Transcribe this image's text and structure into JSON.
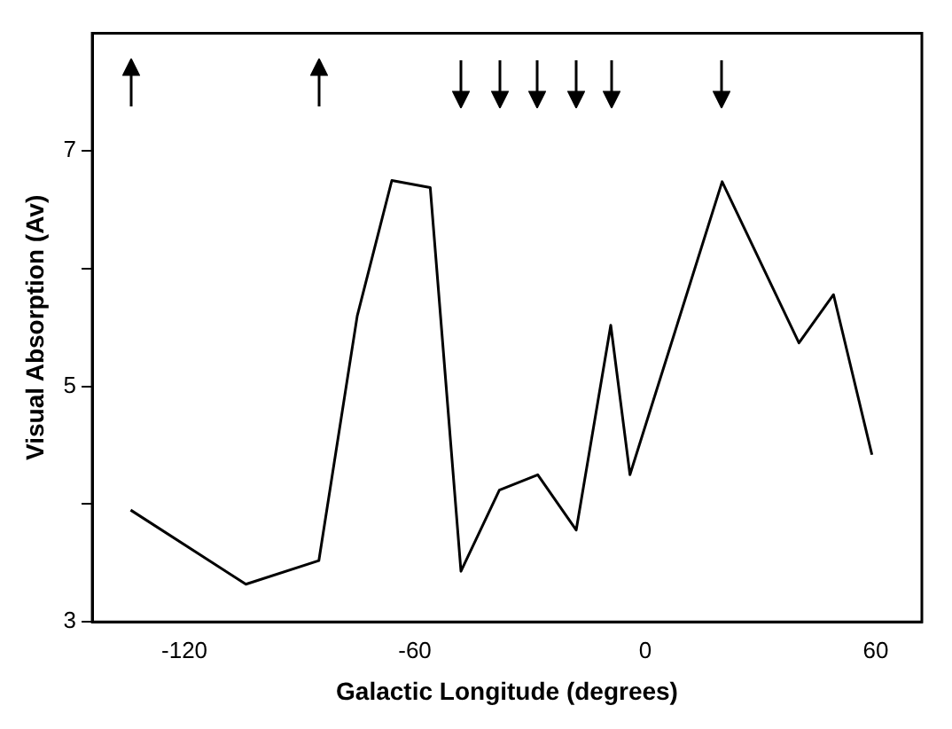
{
  "chart_data": {
    "type": "line",
    "xlabel": "Galactic Longitude (degrees)",
    "ylabel": "Visual Absorption (Av)",
    "x": [
      -134,
      -104,
      -85,
      -75,
      -66,
      -56,
      -48,
      -38,
      -28,
      -18,
      -9,
      -4,
      20,
      40,
      49,
      59
    ],
    "series": [
      {
        "color": "#000000",
        "values": [
          3.95,
          3.32,
          3.52,
          5.6,
          6.75,
          6.69,
          3.43,
          4.12,
          4.25,
          3.78,
          5.52,
          4.25,
          6.74,
          5.37,
          5.78,
          4.42
        ]
      }
    ],
    "xlim": [
      -144,
      72
    ],
    "xticks": [
      -120,
      -60,
      0,
      60
    ],
    "ylim": [
      3,
      8
    ],
    "yticks": [
      3,
      {
        "value": 4,
        "label": null
      },
      5,
      {
        "value": 6,
        "label": null
      },
      7
    ],
    "grid": false,
    "legend": false,
    "marker": "none",
    "line_style": "solid"
  }
}
